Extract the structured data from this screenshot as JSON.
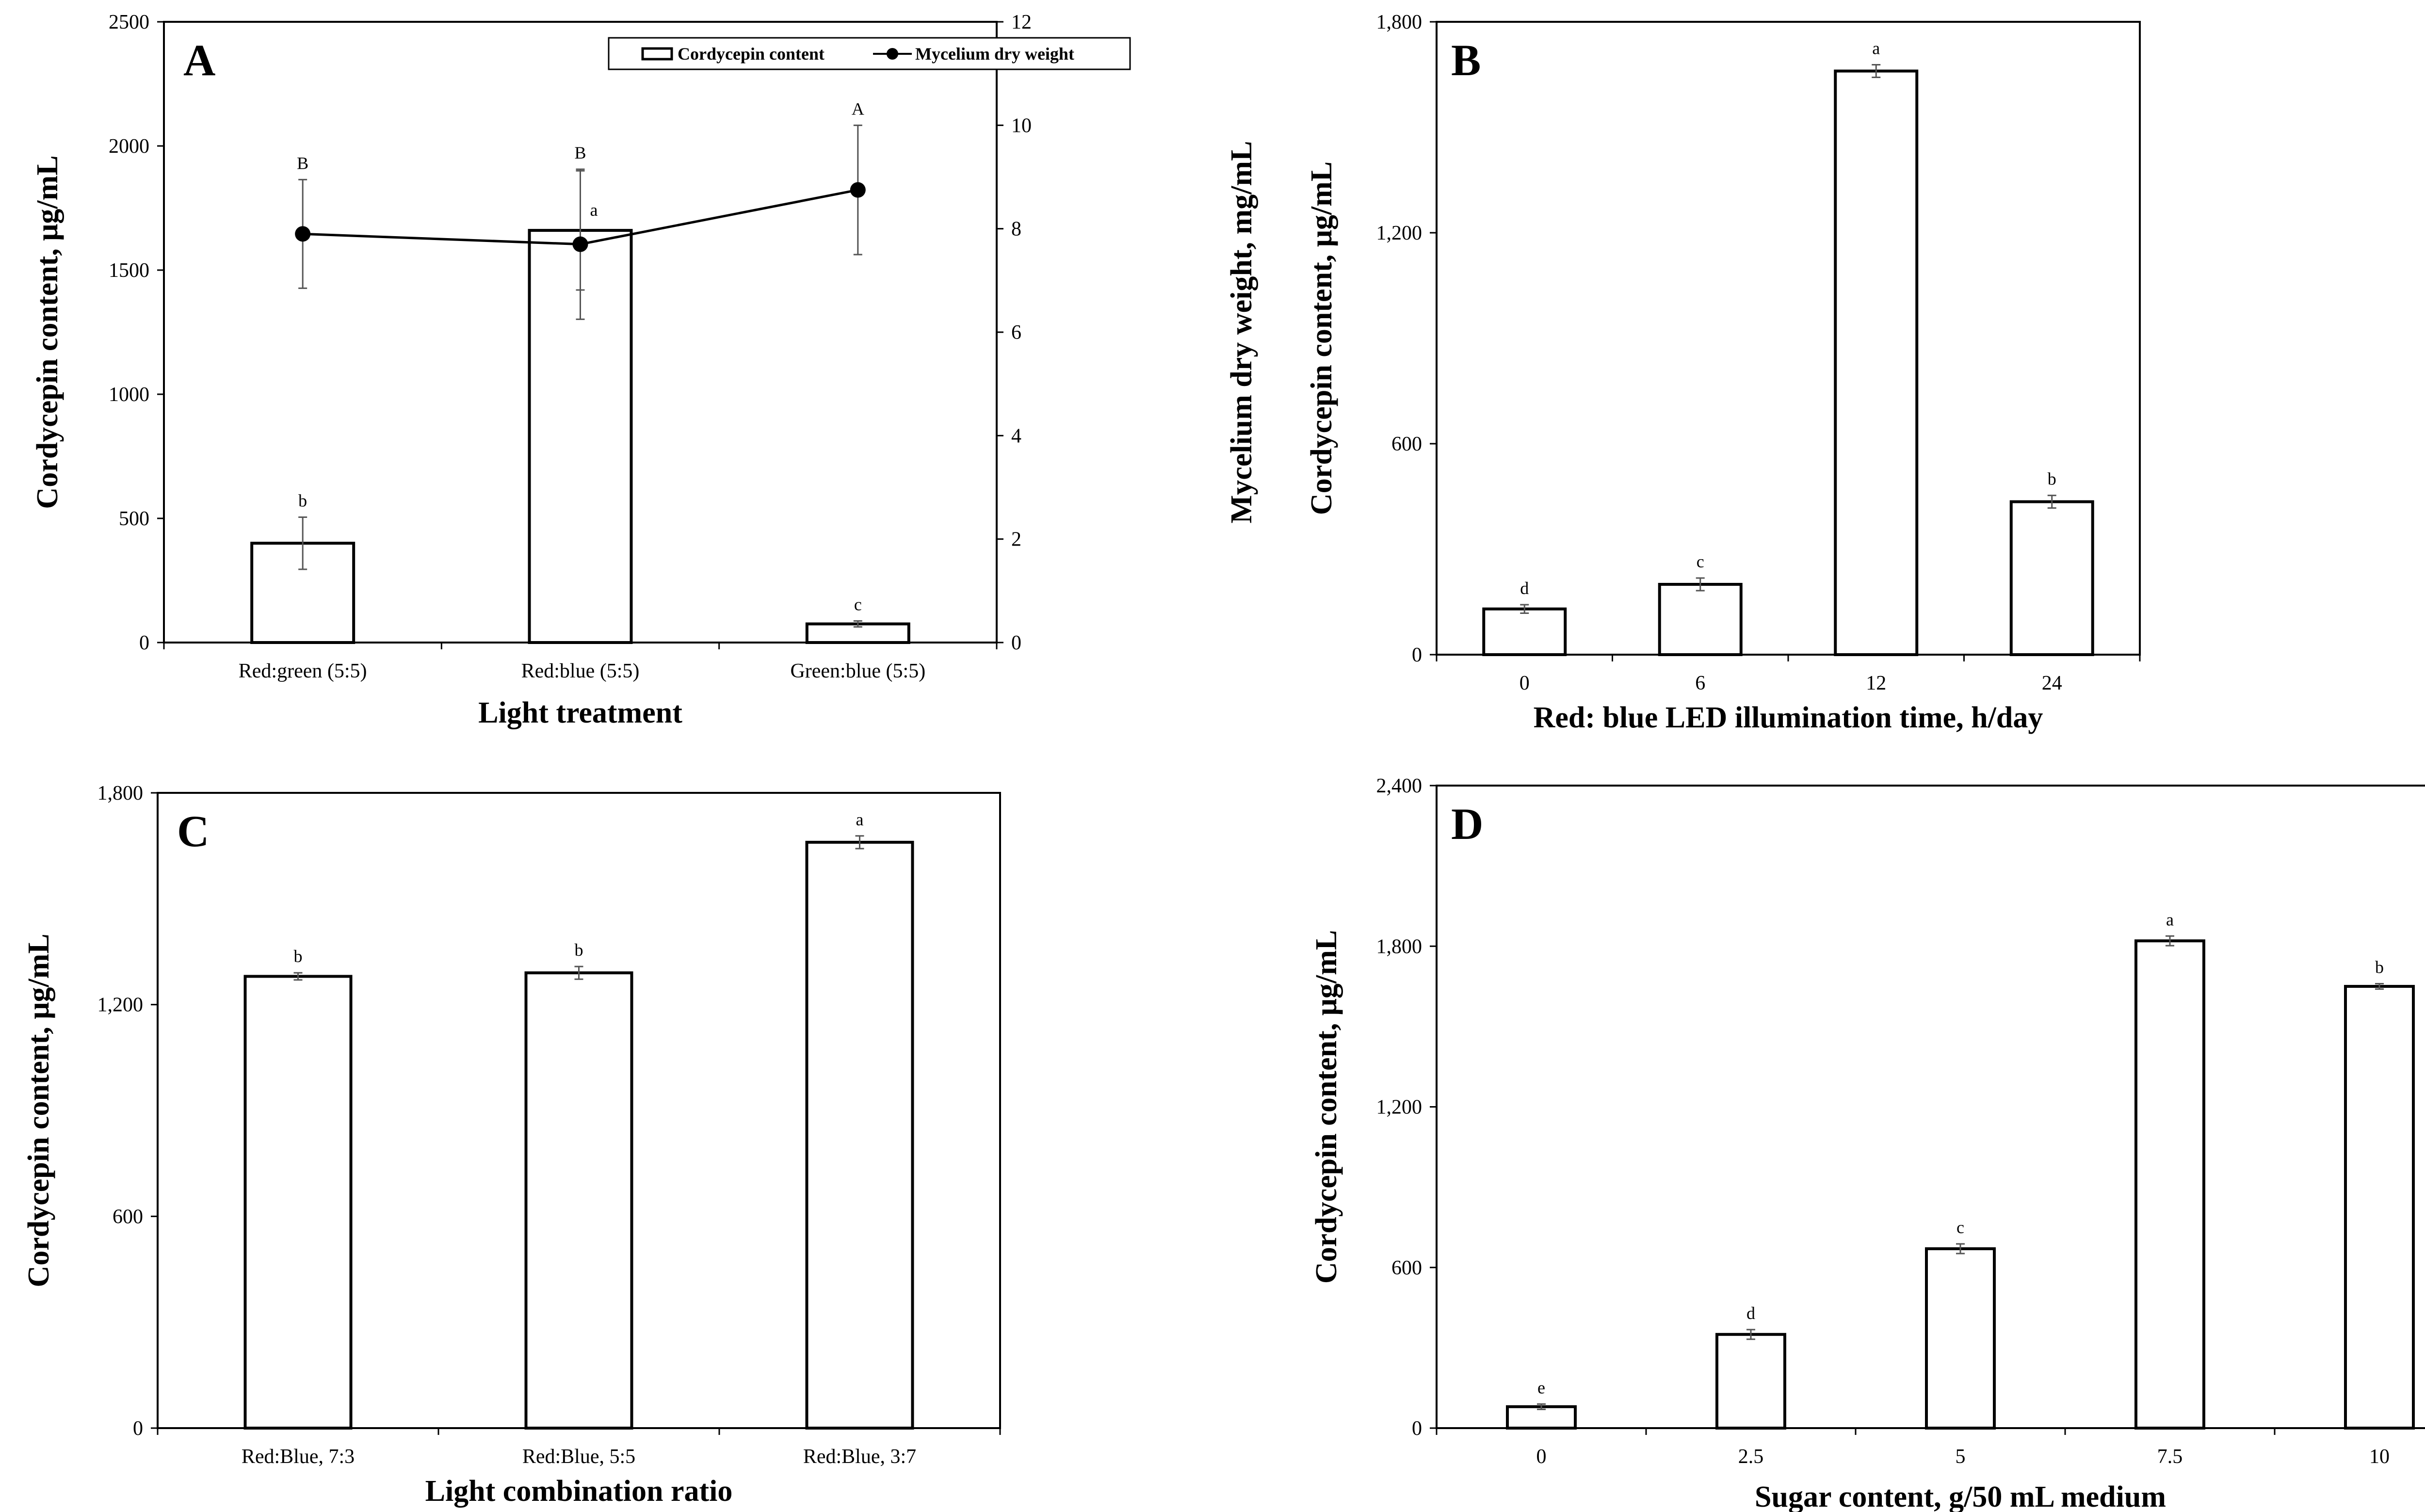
{
  "colors": {
    "bar_fill": "#ffffff",
    "stroke": "#000000",
    "errorbar": "#555555",
    "line": "#000000"
  },
  "chart_data": [
    {
      "panel": "A",
      "type": "bar",
      "categories": [
        "Red:green (5:5)",
        "Red:blue (5:5)",
        "Green:blue (5:5)"
      ],
      "xlabel": "Light treatment",
      "ylabel": "Cordycepin content, μg/mL",
      "y2label": "Mycelium dry weight, mg/mL",
      "ylim": [
        0,
        2500
      ],
      "yticks": [
        0,
        500,
        1000,
        1500,
        2000,
        2500
      ],
      "ytick_labels": [
        "0",
        "500",
        "1000",
        "1500",
        "2000",
        "2500"
      ],
      "y2lim": [
        0,
        12
      ],
      "y2ticks": [
        0,
        2,
        4,
        6,
        8,
        10,
        12
      ],
      "y2tick_labels": [
        "0",
        "2",
        "4",
        "6",
        "8",
        "10",
        "12"
      ],
      "legend": {
        "position": "top-right",
        "entries": [
          "Cordycepin content",
          "Mycelium dry weight"
        ]
      },
      "series": [
        {
          "name": "Cordycepin content",
          "type": "bar",
          "values": [
            400,
            1660,
            75
          ],
          "errors": [
            105,
            240,
            12
          ],
          "labels": [
            "b",
            "a",
            "c"
          ]
        },
        {
          "name": "Mycelium dry weight",
          "type": "line",
          "axis": "right",
          "values": [
            7.9,
            7.7,
            8.75
          ],
          "errors": [
            1.05,
            1.45,
            1.25
          ],
          "labels": [
            "B",
            "B",
            "A"
          ]
        }
      ]
    },
    {
      "panel": "B",
      "type": "bar",
      "categories": [
        "0",
        "6",
        "12",
        "24"
      ],
      "xlabel": "Red: blue LED illumination time, h/day",
      "ylabel": "Cordycepin content, μg/mL",
      "ylim": [
        0,
        1800
      ],
      "yticks": [
        0,
        600,
        1200,
        1800
      ],
      "ytick_labels": [
        "0",
        "600",
        "1,200",
        "1,800"
      ],
      "values": [
        130,
        200,
        1660,
        435
      ],
      "errors": [
        12,
        18,
        18,
        18
      ],
      "labels": [
        "d",
        "c",
        "a",
        "b"
      ]
    },
    {
      "panel": "C",
      "type": "bar",
      "categories": [
        "Red:Blue, 7:3",
        "Red:Blue, 5:5",
        "Red:Blue, 3:7"
      ],
      "xlabel": "Light combination ratio",
      "ylabel": "Cordycepin content, μg/mL",
      "ylim": [
        0,
        1800
      ],
      "yticks": [
        0,
        600,
        1200,
        1800
      ],
      "ytick_labels": [
        "0",
        "600",
        "1,200",
        "1,800"
      ],
      "values": [
        1280,
        1290,
        1660
      ],
      "errors": [
        10,
        18,
        18
      ],
      "labels": [
        "b",
        "b",
        "a"
      ]
    },
    {
      "panel": "D",
      "type": "bar",
      "categories": [
        "0",
        "2.5",
        "5",
        "7.5",
        "10"
      ],
      "xlabel": "Sugar content, g/50 mL medium",
      "ylabel": "Cordycepin content, μg/mL",
      "ylim": [
        0,
        2400
      ],
      "yticks": [
        0,
        600,
        1200,
        1800,
        2400
      ],
      "ytick_labels": [
        "0",
        "600",
        "1,200",
        "1,800",
        "2,400"
      ],
      "values": [
        80,
        350,
        670,
        1820,
        1650
      ],
      "errors": [
        10,
        18,
        18,
        18,
        10
      ],
      "labels": [
        "e",
        "d",
        "c",
        "a",
        "b"
      ]
    }
  ]
}
